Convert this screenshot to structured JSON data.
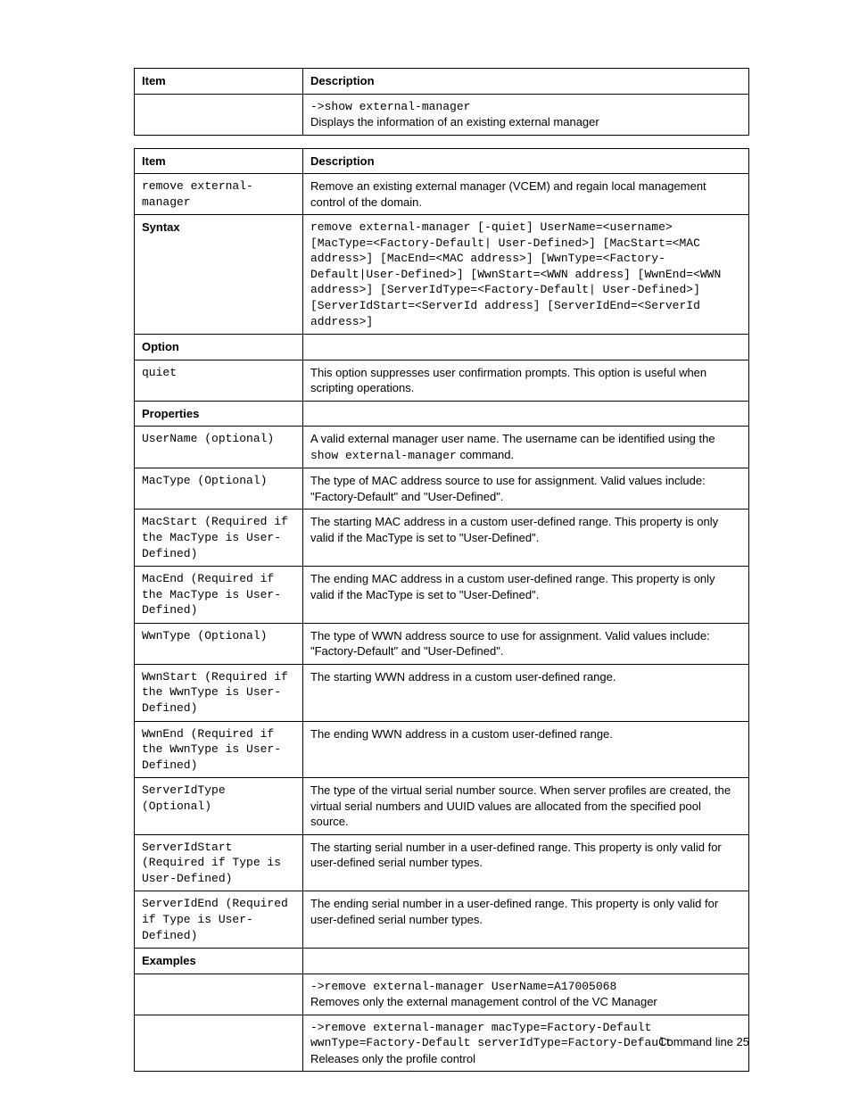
{
  "footer": {
    "text": "Command line  25"
  },
  "table1": {
    "header": {
      "item": "Item",
      "desc": "Description"
    },
    "rows": [
      {
        "item": "",
        "desc_code": "->show external-manager",
        "desc_text": "Displays the information of an existing external manager"
      }
    ]
  },
  "table2": {
    "header": {
      "item": "Item",
      "desc": "Description"
    },
    "rows": {
      "remove_cmd": {
        "item": "remove external-manager",
        "desc": "Remove an existing external manager (VCEM) and regain local management control of the domain."
      },
      "syntax": {
        "item": "Syntax",
        "desc": "remove external-manager [-quiet] UserName=<username> [MacType=<Factory-Default| User-Defined>] [MacStart=<MAC address>] [MacEnd=<MAC address>] [WwnType=<Factory-Default|User-Defined>] [WwnStart=<WWN address] [WwnEnd=<WWN address>] [ServerIdType=<Factory-Default| User-Defined>] [ServerIdStart=<ServerId address] [ServerIdEnd=<ServerId address>]"
      },
      "option_header": {
        "item": "Option",
        "desc": ""
      },
      "quiet": {
        "item": "quiet",
        "desc": "This option suppresses user confirmation prompts. This option is useful when scripting operations."
      },
      "properties_header": {
        "item": "Properties",
        "desc": ""
      },
      "username": {
        "item": "UserName (optional)",
        "desc_pre": "A valid external manager user name. The username can be identified using the ",
        "desc_code": "show external-manager",
        "desc_post": " command."
      },
      "mactype": {
        "item": "MacType (Optional)",
        "desc": "The type of MAC address source to use for assignment. Valid values include: \"Factory-Default\" and \"User-Defined\"."
      },
      "macstart": {
        "item": "MacStart (Required if the MacType is User-Defined)",
        "desc": "The starting MAC address in a custom user-defined range. This property is only valid if the MacType is set to \"User-Defined\"."
      },
      "macend": {
        "item": "MacEnd (Required if the MacType is User-Defined)",
        "desc": "The ending MAC address in a custom user-defined range.  This property is only valid if the MacType is set to \"User-Defined\"."
      },
      "wwntype": {
        "item": "WwnType (Optional)",
        "desc": "The type of WWN address source to use for assignment. Valid values include: \"Factory-Default\" and \"User-Defined\"."
      },
      "wwnstart": {
        "item": "WwnStart (Required if the WwnType is User-Defined)",
        "desc": "The starting WWN address in a custom user-defined range."
      },
      "wwnend": {
        "item": "WwnEnd (Required if the WwnType is User-Defined)",
        "desc": "The ending WWN address in a custom user-defined range."
      },
      "serveridtype": {
        "item": "ServerIdType (Optional)",
        "desc": "The type of the virtual serial number source. When server profiles are created, the virtual serial numbers and UUID values are allocated from the specified pool source."
      },
      "serveridstart": {
        "item": "ServerIdStart (Required if Type is User-Defined)",
        "desc": "The starting serial number in a user-defined range. This property is only valid for user-defined serial number types."
      },
      "serveridend": {
        "item": "ServerIdEnd (Required if Type is User-Defined)",
        "desc": "The ending serial number in a user-defined range. This property is only valid for user-defined serial number types."
      },
      "examples_header": {
        "item": "Examples",
        "desc": ""
      },
      "example1": {
        "item": "",
        "desc_code": "->remove external-manager UserName=A17005068",
        "desc_text": "Removes only the external management control of the VC Manager"
      },
      "example2": {
        "item": "",
        "desc_code": "->remove external-manager macType=Factory-Default wwnType=Factory-Default serverIdType=Factory-Default",
        "desc_text": "Releases only the profile control"
      }
    }
  }
}
